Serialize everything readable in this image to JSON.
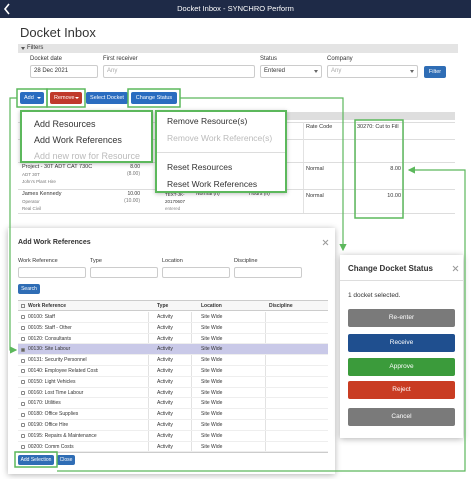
{
  "header": {
    "title": "Docket Inbox - SYNCHRO Perform"
  },
  "page_title": "Docket Inbox",
  "filters": {
    "label": "Filters",
    "fields": [
      {
        "label": "Docket date",
        "value": "28 Dec 2021"
      },
      {
        "label": "First receiver",
        "value": "Any"
      },
      {
        "label": "Status",
        "value": "Entered"
      },
      {
        "label": "Company",
        "value": "Any"
      }
    ],
    "button": "Filter"
  },
  "toolbar": [
    "Add",
    "Remove",
    "Select Docket",
    "Change Status"
  ],
  "add_menu": [
    "Add Resources",
    "Add Work References",
    "Add new row for Resource"
  ],
  "remove_menu": [
    "Remove Resource(s)",
    "Remove Work Reference(s)",
    "Reset Resources",
    "Reset Work References"
  ],
  "docket_table": {
    "headers": [
      "Rate Code",
      "30270: Cut to Fill"
    ],
    "rows": [
      {
        "resource": [
          "Project - 30T ADT CAT 730C",
          "ADT 30T",
          "John's Plant Hire"
        ],
        "quantity": [
          "8.00",
          "(8.00)"
        ],
        "rate_code": "Normal",
        "cut_to_fill": "8.00"
      },
      {
        "resource": [
          "James Kennedy",
          "Operator",
          "Real Civil"
        ],
        "quantity": [
          "10.00",
          "(10.00)"
        ],
        "docket": [
          "TEXT-JK-",
          "20170607",
          "entered"
        ],
        "units": [
          "Normal (h)",
          "Hours (h)"
        ],
        "rate_code": "Normal",
        "cut_to_fill": "10.00"
      }
    ]
  },
  "work_references": {
    "title": "Add Work References",
    "fields": [
      "Work Reference",
      "Type",
      "Location",
      "Discipline"
    ],
    "search": "Search",
    "columns": [
      "Work Reference",
      "Type",
      "Location",
      "Discipline"
    ],
    "rows": [
      [
        "00100: Staff",
        "Activity",
        "Site Wide"
      ],
      [
        "00105: Staff - Other",
        "Activity",
        "Site Wide"
      ],
      [
        "00120: Consultants",
        "Activity",
        "Site Wide"
      ],
      [
        "00130: Site Labour",
        "Activity",
        "Site Wide"
      ],
      [
        "00131: Security Personnel",
        "Activity",
        "Site Wide"
      ],
      [
        "00140: Employee Related Costs",
        "Activity",
        "Site Wide"
      ],
      [
        "00150: Light Vehicles",
        "Activity",
        "Site Wide"
      ],
      [
        "00160: Lost Time Labour",
        "Activity",
        "Site Wide"
      ],
      [
        "00170: Utilities",
        "Activity",
        "Site Wide"
      ],
      [
        "00180: Office Supplies",
        "Activity",
        "Site Wide"
      ],
      [
        "00190: Office Hire",
        "Activity",
        "Site Wide"
      ],
      [
        "00195: Repairs & Maintenance",
        "Activity",
        "Site Wide"
      ],
      [
        "00200: Comm Costs",
        "Activity",
        "Site Wide"
      ]
    ],
    "selected_row": 3,
    "buttons": [
      "Add Selection",
      "Close"
    ]
  },
  "status_dialog": {
    "title": "Change Docket Status",
    "message": "1 docket selected.",
    "buttons": [
      {
        "label": "Re-enter",
        "color": "#7a7a7a"
      },
      {
        "label": "Receive",
        "color": "#1f4f8f"
      },
      {
        "label": "Approve",
        "color": "#3b9b3b"
      },
      {
        "label": "Reject",
        "color": "#c93c22"
      },
      {
        "label": "Cancel",
        "color": "#7a7a7a"
      }
    ]
  }
}
